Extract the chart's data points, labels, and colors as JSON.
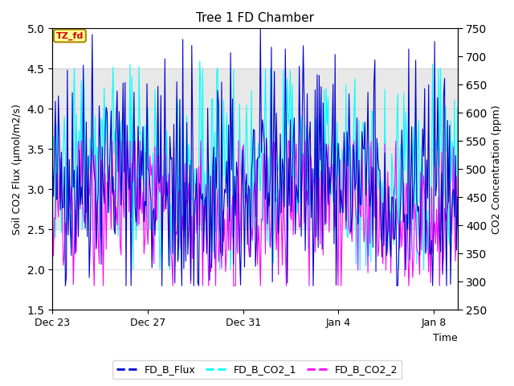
{
  "title": "Tree 1 FD Chamber",
  "xlabel": "Time",
  "ylabel_left": "Soil CO2 Flux (μmol/m2/s)",
  "ylabel_right": "CO2 Concentration (ppm)",
  "ylim_left": [
    1.5,
    5.0
  ],
  "ylim_right": [
    250,
    750
  ],
  "yticks_left": [
    1.5,
    2.0,
    2.5,
    3.0,
    3.5,
    4.0,
    4.5,
    5.0
  ],
  "yticks_right": [
    250,
    300,
    350,
    400,
    450,
    500,
    550,
    600,
    650,
    700,
    750
  ],
  "xtick_labels": [
    "Dec 23",
    "Dec 27",
    "Dec 31",
    "Jan 4",
    "Jan 8"
  ],
  "xtick_positions": [
    0,
    4,
    8,
    12,
    16
  ],
  "n_days": 17,
  "color_flux": "#0000CD",
  "color_co2_1": "#00FFFF",
  "color_co2_2": "#FF00FF",
  "legend_labels": [
    "FD_B_Flux",
    "FD_B_CO2_1",
    "FD_B_CO2_2"
  ],
  "tag_text": "TZ_fd",
  "tag_facecolor": "#FFFF99",
  "tag_edgecolor": "#AA8800",
  "tag_textcolor": "#CC0000",
  "shaded_band_ymin": 2.5,
  "shaded_band_ymax": 4.5,
  "shaded_band_color": "#e8e8e8",
  "grid_color": "#cccccc",
  "linewidth_flux": 0.8,
  "linewidth_co2": 0.8,
  "seed": 42
}
